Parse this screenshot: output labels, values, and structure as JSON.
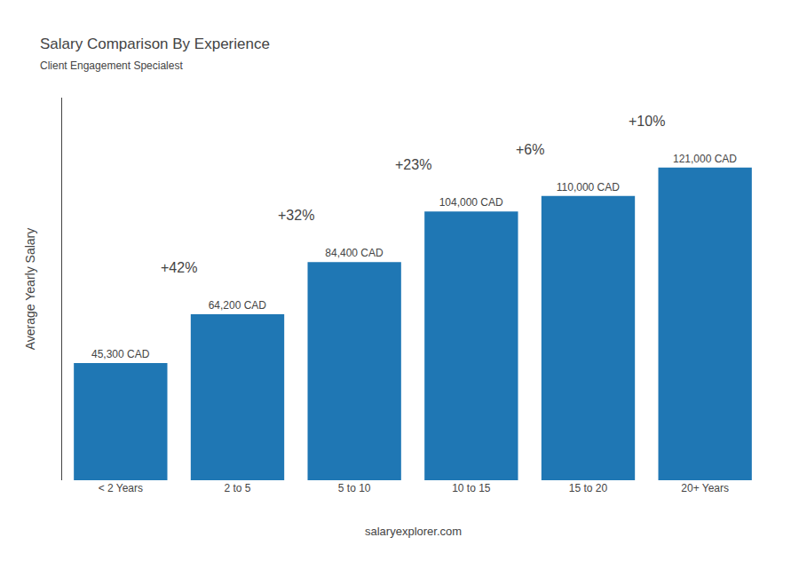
{
  "chart_data": {
    "type": "bar",
    "title": "Salary Comparison By Experience",
    "subtitle": "Client Engagement Specialest",
    "categories": [
      "< 2 Years",
      "2 to 5",
      "5 to 10",
      "10 to 15",
      "15 to 20",
      "20+ Years"
    ],
    "values": [
      45300,
      64200,
      84400,
      104000,
      110000,
      121000
    ],
    "value_labels": [
      "45,300 CAD",
      "64,200 CAD",
      "84,400 CAD",
      "104,000 CAD",
      "110,000 CAD",
      "121,000 CAD"
    ],
    "data_labels": true,
    "ylabel": "Average Yearly Salary",
    "ylim": [
      0,
      148000
    ],
    "yticks": [],
    "tick_labels": "x",
    "grid": false,
    "annotations": [
      "+42%",
      "+32%",
      "+23%",
      "+6%",
      "+10%"
    ],
    "footer": "salaryexplorer.com"
  }
}
